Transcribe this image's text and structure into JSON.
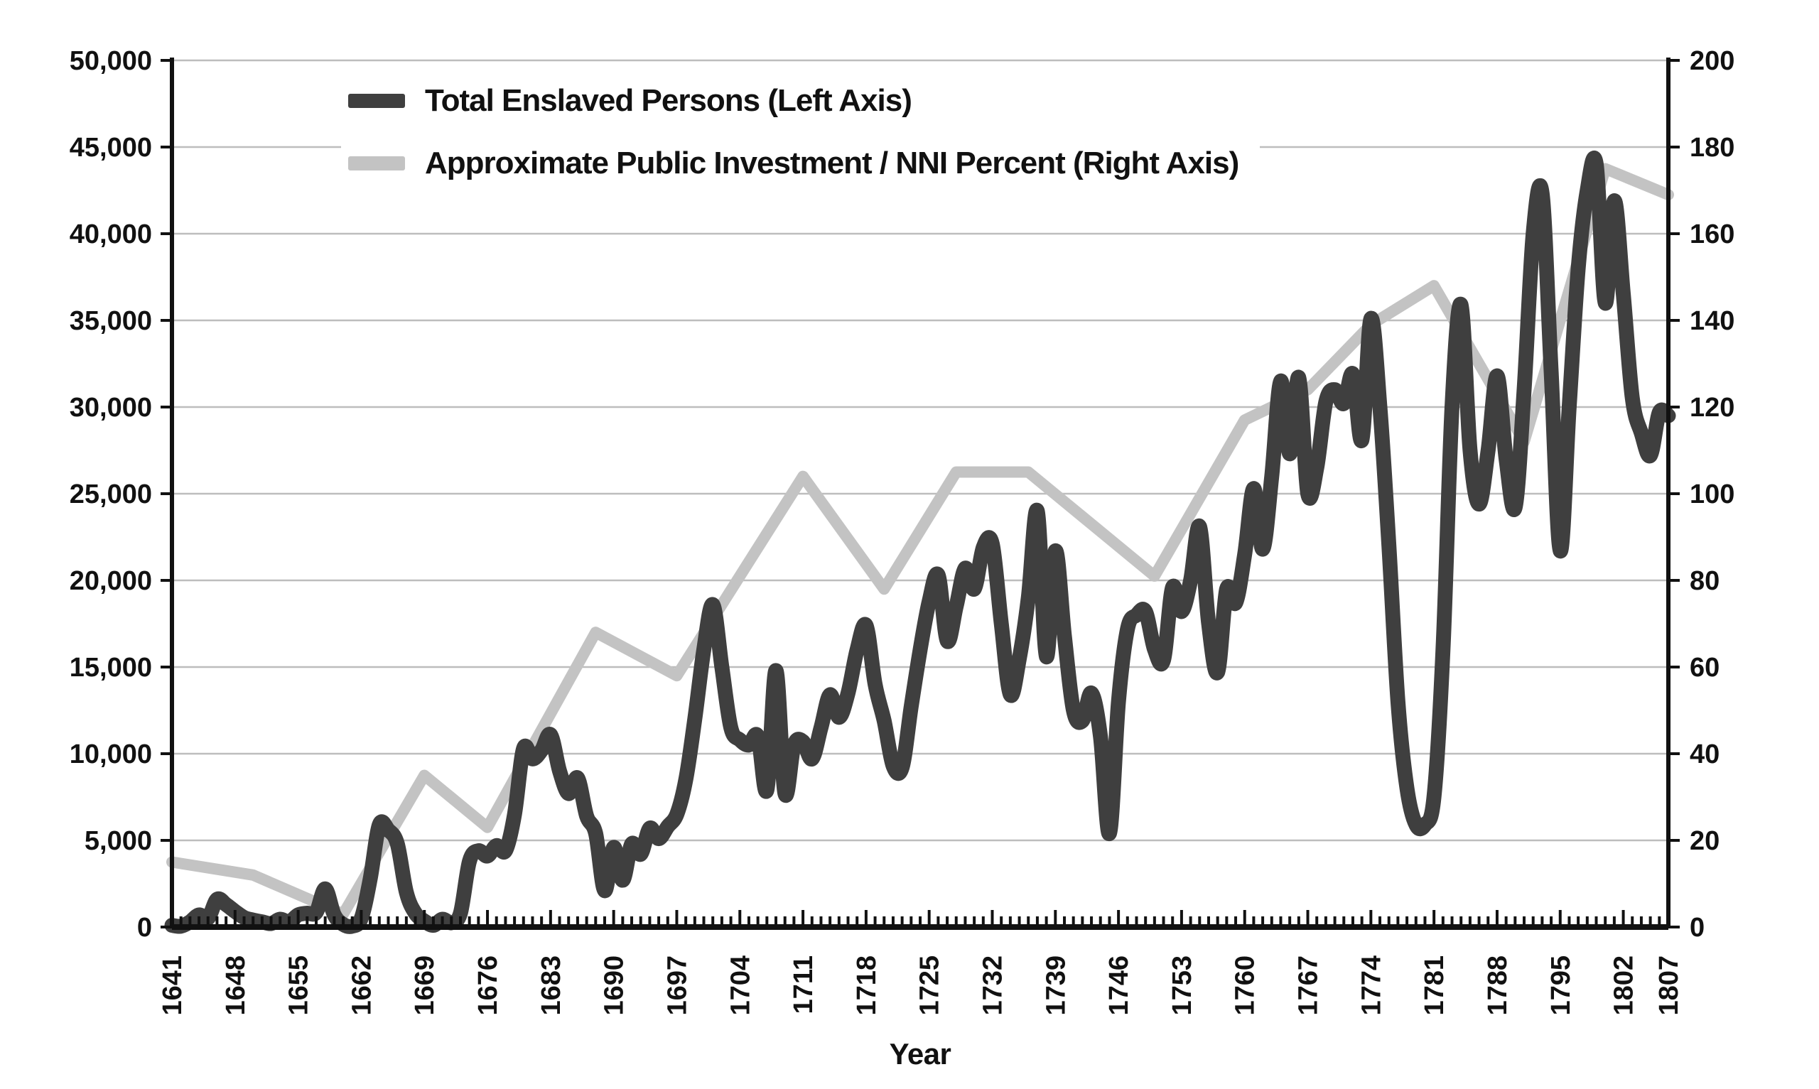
{
  "chart_data": {
    "type": "line",
    "title": "",
    "xlabel": "Year",
    "grid": "horizontal",
    "legend_position": "top-left-inside",
    "x_range": [
      1641,
      1807
    ],
    "x_tick_years": [
      "1641",
      "1648",
      "1655",
      "1662",
      "1669",
      "1676",
      "1683",
      "1690",
      "1697",
      "1704",
      "1711",
      "1718",
      "1725",
      "1732",
      "1739",
      "1746",
      "1753",
      "1760",
      "1767",
      "1774",
      "1781",
      "1788",
      "1795",
      "1802",
      "1807"
    ],
    "left_axis": {
      "min": 0,
      "max": 50000,
      "step": 5000,
      "tick_labels": [
        "0",
        "5,000",
        "10,000",
        "15,000",
        "20,000",
        "25,000",
        "30,000",
        "35,000",
        "40,000",
        "45,000",
        "50,000"
      ]
    },
    "right_axis": {
      "min": 0,
      "max": 200,
      "step": 20,
      "tick_labels": [
        "0",
        "20",
        "40",
        "60",
        "80",
        "100",
        "120",
        "140",
        "160",
        "180",
        "200"
      ]
    },
    "series": [
      {
        "name": "Total Enslaved Persons (Left Axis)",
        "axis": "left",
        "color": "#3f3f3f",
        "stroke_width": 21,
        "smooth": true,
        "start_year": 1641,
        "step": 1,
        "values": [
          100,
          50,
          300,
          700,
          500,
          1600,
          1300,
          900,
          550,
          400,
          300,
          200,
          450,
          300,
          700,
          800,
          850,
          2200,
          700,
          150,
          50,
          500,
          2800,
          5900,
          5600,
          4800,
          2000,
          800,
          350,
          100,
          450,
          250,
          800,
          3800,
          4400,
          4100,
          4700,
          4400,
          6500,
          10300,
          9700,
          10200,
          11100,
          9000,
          7700,
          8600,
          6400,
          5400,
          2100,
          4600,
          2700,
          4800,
          4200,
          5700,
          5100,
          5800,
          6500,
          8500,
          12000,
          16000,
          18600,
          15000,
          11500,
          10800,
          10500,
          11000,
          7900,
          14800,
          7700,
          10500,
          10700,
          9700,
          11500,
          13400,
          12100,
          13500,
          16000,
          17400,
          14000,
          11900,
          9300,
          9200,
          12700,
          16000,
          18800,
          20300,
          16500,
          18500,
          20700,
          19500,
          21900,
          22100,
          17500,
          13400,
          15500,
          19000,
          24000,
          15600,
          21700,
          16800,
          12500,
          11900,
          13500,
          11000,
          5400,
          13000,
          17200,
          18000,
          18200,
          16000,
          15400,
          19600,
          18200,
          20000,
          23100,
          17500,
          14700,
          19500,
          18700,
          21500,
          25300,
          21800,
          26000,
          31500,
          27300,
          31700,
          25000,
          26500,
          30300,
          31000,
          30200,
          31900,
          28100,
          35100,
          30000,
          22000,
          13000,
          8000,
          5900,
          5900,
          7500,
          16000,
          30000,
          35900,
          27500,
          24400,
          27500,
          31800,
          27000,
          24200,
          31000,
          40000,
          42300,
          32000,
          21700,
          30000,
          38000,
          42500,
          44000,
          36000,
          41900,
          36500,
          30500,
          28500,
          27200,
          29700,
          29500
        ]
      },
      {
        "name": "Approximate Public Investment / NNI Percent (Right Axis)",
        "axis": "right",
        "color": "#c3c3c3",
        "stroke_width": 16,
        "smooth": false,
        "points": [
          [
            1641,
            15
          ],
          [
            1650,
            12
          ],
          [
            1660,
            3
          ],
          [
            1669,
            35
          ],
          [
            1676,
            23
          ],
          [
            1688,
            68
          ],
          [
            1697,
            58
          ],
          [
            1711,
            104
          ],
          [
            1720,
            78
          ],
          [
            1728,
            105
          ],
          [
            1736,
            105
          ],
          [
            1750,
            81
          ],
          [
            1760,
            117
          ],
          [
            1767,
            124
          ],
          [
            1774,
            139
          ],
          [
            1781,
            148
          ],
          [
            1791,
            112
          ],
          [
            1800,
            175
          ],
          [
            1807,
            169
          ]
        ]
      }
    ]
  },
  "style": {
    "background": "#ffffff",
    "grid_color": "#bdbdbd",
    "axis_color": "#111111",
    "text_color": "#111111"
  }
}
